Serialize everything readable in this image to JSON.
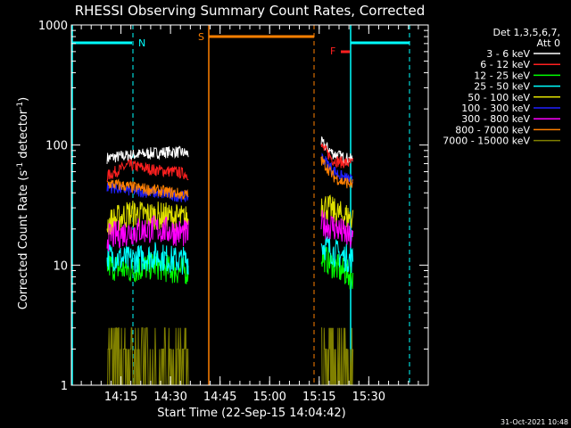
{
  "chart_data": {
    "type": "line",
    "title": "RHESSI Observing Summary Count Rates, Corrected",
    "xlabel": "Start Time (22-Sep-15 14:04:42)",
    "ylabel": "Corrected Count Rate (s",
    "ylabel_sup1": "-1",
    "ylabel_mid": " detector",
    "ylabel_sup2": "-1",
    "ylabel_end": ")",
    "yscale": "log",
    "ylim": [
      1,
      1000
    ],
    "xlim_minutes": [
      14.0,
      15.8
    ],
    "x_tick_labels": [
      "14:15",
      "14:30",
      "14:45",
      "15:00",
      "15:15",
      "15:30"
    ],
    "x_tick_minutes": [
      14.25,
      14.5,
      14.75,
      15.0,
      15.25,
      15.5
    ],
    "y_tick_labels": [
      "1",
      "10",
      "100",
      "1000"
    ],
    "y_tick_values": [
      1,
      10,
      100,
      1000
    ],
    "legend_placement": "top-right",
    "legend_header": [
      "Det 1,3,5,6,7,",
      "Att 0"
    ],
    "series": [
      {
        "name": "3 - 6 keV",
        "color": "#ffffff",
        "values": [
          [
            14.18,
            78
          ],
          [
            14.29,
            82
          ],
          [
            14.42,
            86
          ],
          [
            14.52,
            88
          ],
          [
            14.59,
            85
          ],
          [
            15.26,
            105
          ],
          [
            15.32,
            85
          ],
          [
            15.36,
            80
          ],
          [
            15.42,
            75
          ]
        ]
      },
      {
        "name": "6 - 12 keV",
        "color": "#ff2020",
        "values": [
          [
            14.18,
            55
          ],
          [
            14.29,
            68
          ],
          [
            14.42,
            62
          ],
          [
            14.52,
            60
          ],
          [
            14.59,
            57
          ],
          [
            15.26,
            98
          ],
          [
            15.32,
            75
          ],
          [
            15.36,
            72
          ],
          [
            15.42,
            70
          ]
        ]
      },
      {
        "name": "12 - 25 keV",
        "color": "#00ff00",
        "values": [
          [
            14.18,
            10
          ],
          [
            14.29,
            9
          ],
          [
            14.42,
            10
          ],
          [
            14.52,
            9
          ],
          [
            14.59,
            9
          ],
          [
            15.26,
            12
          ],
          [
            15.32,
            10
          ],
          [
            15.36,
            9
          ],
          [
            15.42,
            8
          ]
        ]
      },
      {
        "name": "25 - 50 keV",
        "color": "#00ffff",
        "values": [
          [
            14.18,
            12
          ],
          [
            14.29,
            11
          ],
          [
            14.42,
            12
          ],
          [
            14.52,
            11
          ],
          [
            14.59,
            11
          ],
          [
            15.26,
            15
          ],
          [
            15.32,
            13
          ],
          [
            15.36,
            12
          ],
          [
            15.42,
            11
          ]
        ]
      },
      {
        "name": "50 - 100 keV",
        "color": "#e0e000",
        "values": [
          [
            14.18,
            22
          ],
          [
            14.29,
            27
          ],
          [
            14.42,
            26
          ],
          [
            14.52,
            25
          ],
          [
            14.59,
            24
          ],
          [
            15.26,
            33
          ],
          [
            15.32,
            28
          ],
          [
            15.36,
            26
          ],
          [
            15.42,
            25
          ]
        ]
      },
      {
        "name": "100 - 300 keV",
        "color": "#2020ff",
        "values": [
          [
            14.18,
            45
          ],
          [
            14.29,
            42
          ],
          [
            14.42,
            40
          ],
          [
            14.52,
            38
          ],
          [
            14.59,
            37
          ],
          [
            15.26,
            80
          ],
          [
            15.32,
            62
          ],
          [
            15.36,
            55
          ],
          [
            15.42,
            50
          ]
        ]
      },
      {
        "name": "300 - 800 keV",
        "color": "#ff00ff",
        "values": [
          [
            14.18,
            17
          ],
          [
            14.29,
            19
          ],
          [
            14.42,
            20
          ],
          [
            14.52,
            19
          ],
          [
            14.59,
            18
          ],
          [
            15.26,
            22
          ],
          [
            15.32,
            21
          ],
          [
            15.36,
            19
          ],
          [
            15.42,
            16
          ]
        ]
      },
      {
        "name": "800 - 7000 keV",
        "color": "#ff8000",
        "values": [
          [
            14.18,
            48
          ],
          [
            14.29,
            45
          ],
          [
            14.42,
            42
          ],
          [
            14.52,
            40
          ],
          [
            14.59,
            38
          ],
          [
            15.26,
            75
          ],
          [
            15.32,
            55
          ],
          [
            15.36,
            50
          ],
          [
            15.42,
            47
          ]
        ]
      },
      {
        "name": "7000 - 15000 keV",
        "color": "#808000",
        "values": [
          [
            14.18,
            2
          ],
          [
            14.29,
            2
          ],
          [
            14.42,
            2
          ],
          [
            14.52,
            2
          ],
          [
            14.59,
            2
          ],
          [
            15.26,
            2
          ],
          [
            15.32,
            2
          ],
          [
            15.36,
            2
          ],
          [
            15.42,
            2
          ]
        ]
      }
    ],
    "annotations": [
      {
        "label": "N",
        "color": "#00ffff"
      },
      {
        "label": "S",
        "color": "#ff8000"
      },
      {
        "label": "F",
        "color": "#ff2020"
      }
    ],
    "timestamp": "31-Oct-2021 10:48"
  }
}
